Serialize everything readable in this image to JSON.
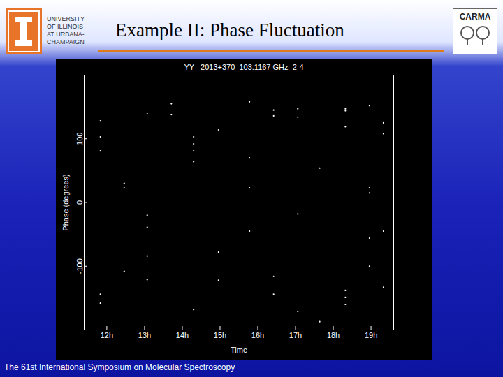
{
  "slide": {
    "institution": [
      "UNIVERSITY",
      "OF ILLINOIS",
      "AT URBANA-",
      "CHAMPAIGN"
    ],
    "title": "Example II: Phase Fluctuation",
    "logo_right": "CARMA",
    "footer": "The 61st International Symposium on Molecular Spectroscopy"
  },
  "chart_data": {
    "type": "scatter",
    "title": "YY   2013+370  103.1167 GHz  2-4",
    "x_label": "Time",
    "y_label": "Phase (degrees)",
    "x": [
      11.83,
      11.83,
      11.83,
      11.83,
      11.83,
      12.46,
      12.46,
      12.46,
      13.07,
      13.07,
      13.07,
      13.07,
      13.07,
      13.71,
      13.71,
      14.3,
      14.3,
      14.3,
      14.3,
      14.3,
      14.96,
      14.96,
      14.96,
      15.78,
      15.78,
      15.78,
      15.78,
      16.42,
      16.42,
      16.42,
      16.42,
      17.06,
      17.06,
      17.06,
      17.06,
      17.64,
      17.64,
      18.32,
      18.32,
      18.32,
      18.32,
      18.32,
      18.32,
      18.96,
      18.96,
      18.96,
      18.96,
      18.96,
      19.33,
      19.33,
      19.33,
      19.33
    ],
    "values": [
      128,
      103,
      81,
      -144,
      -158,
      30,
      23,
      -108,
      139,
      -20,
      -39,
      -121,
      -84,
      155,
      138,
      103,
      92,
      81,
      64,
      -168,
      114,
      -78,
      -122,
      158,
      70,
      23,
      -45,
      145,
      136,
      -116,
      -144,
      147,
      134,
      -18,
      -171,
      54,
      -187,
      147,
      144,
      119,
      -138,
      -149,
      -160,
      152,
      23,
      15,
      -56,
      -100,
      125,
      108,
      -45,
      -133
    ],
    "color": "#ffffff",
    "marker": "dot",
    "xlim": [
      11.4,
      19.6
    ],
    "xticks": [
      {
        "value": 12,
        "label": "12h"
      },
      {
        "value": 13,
        "label": "13h"
      },
      {
        "value": 14,
        "label": "14h"
      },
      {
        "value": 15,
        "label": "15h"
      },
      {
        "value": 16,
        "label": "16h"
      },
      {
        "value": 17,
        "label": "17h"
      },
      {
        "value": 18,
        "label": "18h"
      },
      {
        "value": 19,
        "label": "19h"
      }
    ],
    "ylim": [
      -200,
      200
    ],
    "yticks": [
      -100,
      0,
      100
    ],
    "grid": false
  }
}
